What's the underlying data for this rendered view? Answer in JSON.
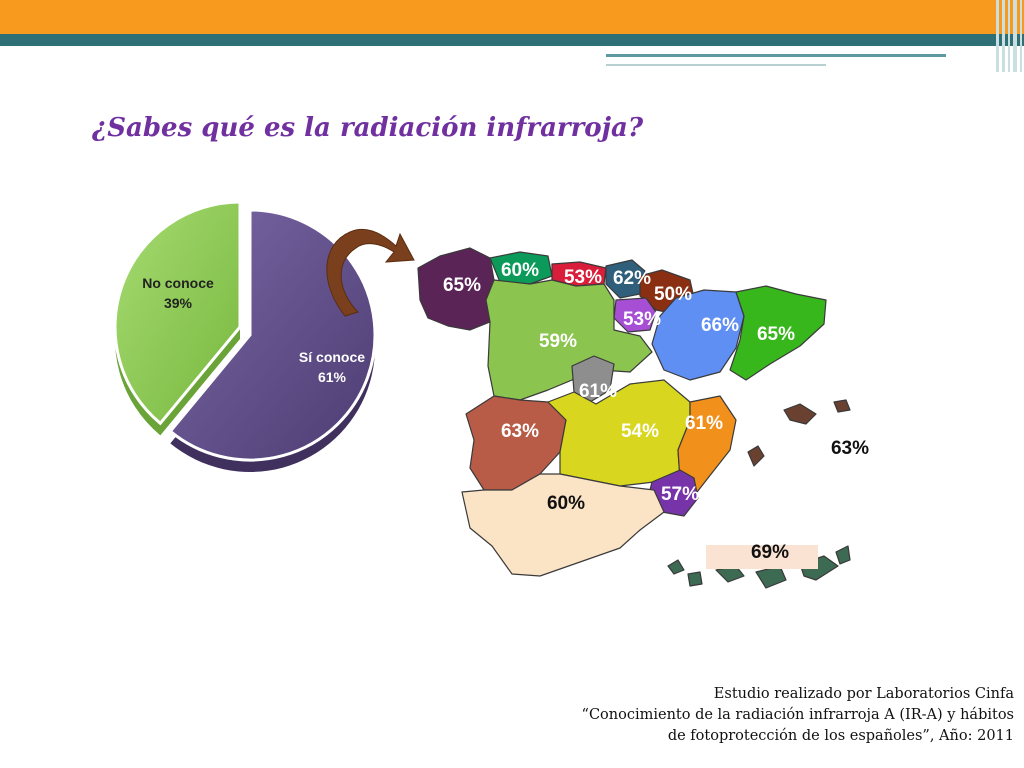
{
  "title": "¿Sabes qué es la radiación infrarroja?",
  "colors": {
    "accent_orange": "#f79a1e",
    "accent_teal": "#2f6f76",
    "title": "#7030a0"
  },
  "icons": {
    "arrow": "curved-arrow-icon"
  },
  "chart_data": [
    {
      "type": "pie",
      "slices": [
        {
          "label": "Sí conoce",
          "value": 61,
          "display": "61%",
          "color": "#5e4a84"
        },
        {
          "label": "No conoce",
          "value": 39,
          "display": "39%",
          "color": "#8ccb4f"
        }
      ],
      "exploded": "No conoce",
      "style": "3d"
    },
    {
      "type": "map",
      "labels": [
        {
          "value": "65%",
          "region_color": "#5a2457"
        },
        {
          "value": "60%",
          "region_color": "#0b9a5a"
        },
        {
          "value": "53%",
          "region_color": "#d81e3a"
        },
        {
          "value": "62%",
          "region_color": "#2f5f7a"
        },
        {
          "value": "50%",
          "region_color": "#8b2f12"
        },
        {
          "value": "53%",
          "region_color": "#a64fd4"
        },
        {
          "value": "66%",
          "region_color": "#5f8ff2"
        },
        {
          "value": "65%",
          "region_color": "#38b71d"
        },
        {
          "value": "59%",
          "region_color": "#8bc44f"
        },
        {
          "value": "61%",
          "region_color": "#8e8e8e"
        },
        {
          "value": "63%",
          "region_color": "#b85b47"
        },
        {
          "value": "54%",
          "region_color": "#d8d61e"
        },
        {
          "value": "61%",
          "region_color": "#f2901c"
        },
        {
          "value": "57%",
          "region_color": "#7733a8"
        },
        {
          "value": "60%",
          "region_color": "#fbe3c6"
        },
        {
          "value": "63%",
          "region_color": "#6a4030"
        },
        {
          "value": "69%",
          "region_color": "#3d6a52"
        }
      ]
    }
  ],
  "source": {
    "line1": "Estudio realizado por Laboratorios Cinfa",
    "line2": "“Conocimiento de la radiación infrarroja A (IR-A) y hábitos",
    "line3": "de fotoprotección de los españoles”, Año: 2011"
  }
}
